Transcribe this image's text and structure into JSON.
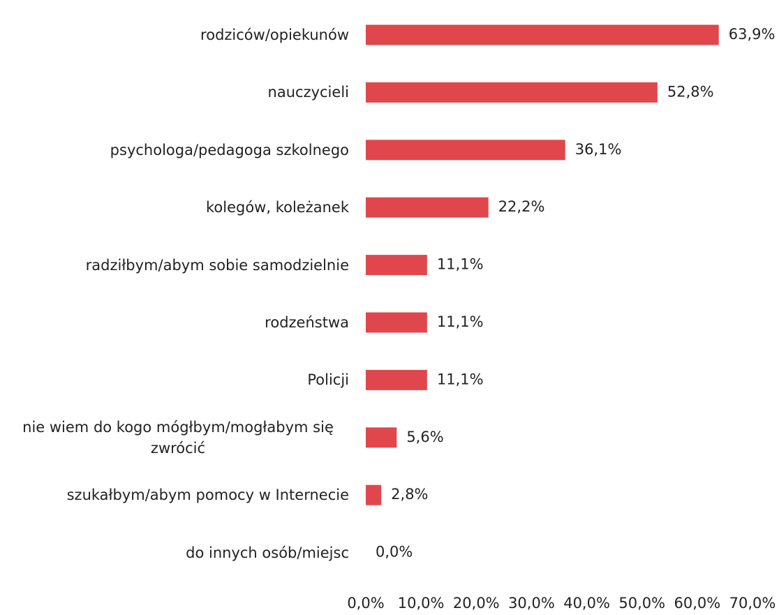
{
  "chart_data": {
    "type": "bar",
    "orientation": "horizontal",
    "categories": [
      "rodziców/opiekunów",
      "nauczycieli",
      "psychologa/pedagoga szkolnego",
      "kolegów, koleżanek",
      "radziłbym/abym sobie samodzielnie",
      "rodzeństwa",
      "Policji",
      "nie wiem do kogo mógłbym/mogłabym się zwrócić",
      "szukałbym/abym pomocy w Internecie",
      "do innych osób/miejsc"
    ],
    "values": [
      63.9,
      52.8,
      36.1,
      22.2,
      11.1,
      11.1,
      11.1,
      5.6,
      2.8,
      0.0
    ],
    "value_labels": [
      "63,9%",
      "52,8%",
      "36,1%",
      "22,2%",
      "11,1%",
      "11,1%",
      "11,1%",
      "5,6%",
      "2,8%",
      "0,0%"
    ],
    "color": "#e0474c",
    "xlim": [
      0,
      70
    ],
    "xticks": [
      {
        "value": 0,
        "label": "0,0%"
      },
      {
        "value": 10,
        "label": "10,0%"
      },
      {
        "value": 20,
        "label": "20,0%"
      },
      {
        "value": 30,
        "label": "30,0%"
      },
      {
        "value": 40,
        "label": "40,0%"
      },
      {
        "value": 50,
        "label": "50,0%"
      },
      {
        "value": 60,
        "label": "60,0%"
      },
      {
        "value": 70,
        "label": "70,0%"
      }
    ],
    "grid": false
  }
}
